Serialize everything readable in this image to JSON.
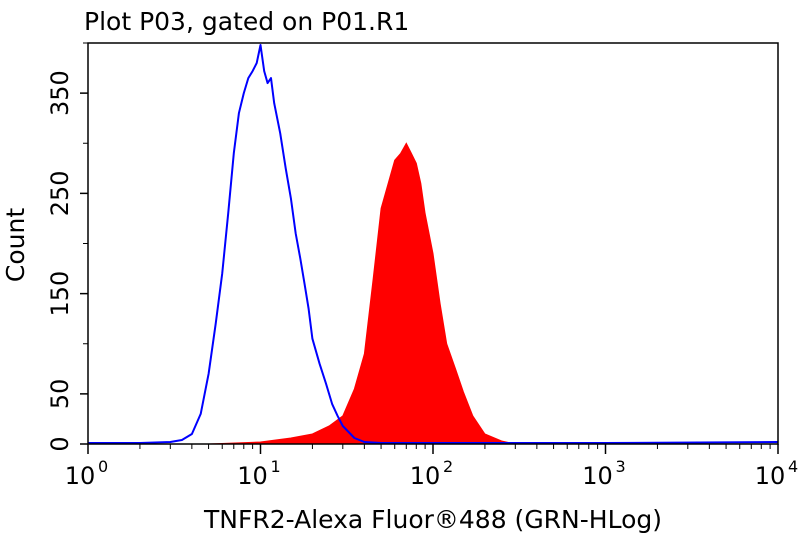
{
  "chart_data": {
    "type": "area",
    "title": "Plot P03, gated on P01.R1",
    "xlabel": "TNFR2-Alexa Fluor®488 (GRN-HLog)",
    "ylabel": "Count",
    "x_scale": "log",
    "xlim": [
      1,
      10000
    ],
    "ylim": [
      0,
      400
    ],
    "x_ticks": [
      {
        "base": "10",
        "exp": "0"
      },
      {
        "base": "10",
        "exp": "1"
      },
      {
        "base": "10",
        "exp": "2"
      },
      {
        "base": "10",
        "exp": "3"
      },
      {
        "base": "10",
        "exp": "4"
      }
    ],
    "y_ticks": [
      "0",
      "50",
      "150",
      "250",
      "350"
    ],
    "y_tick_values": [
      0,
      50,
      150,
      250,
      350
    ],
    "grid": false,
    "series": [
      {
        "style": "filled",
        "color": "#ff0000",
        "x": [
          1,
          5,
          10,
          15,
          20,
          25,
          30,
          35,
          40,
          45,
          50,
          55,
          60,
          65,
          70,
          75,
          80,
          85,
          90,
          100,
          110,
          120,
          135,
          150,
          170,
          200,
          250,
          300,
          400,
          1000,
          10000
        ],
        "y": [
          0,
          0,
          2,
          6,
          10,
          18,
          28,
          55,
          90,
          165,
          235,
          260,
          283,
          290,
          300,
          290,
          280,
          260,
          230,
          190,
          140,
          100,
          75,
          52,
          28,
          10,
          3,
          0,
          0,
          0,
          0
        ]
      },
      {
        "style": "line",
        "color": "#0000ff",
        "x": [
          1,
          2,
          3,
          3.5,
          4,
          4.5,
          5,
          5.5,
          6,
          6.5,
          7,
          7.5,
          8,
          8.5,
          9,
          9.5,
          10,
          10.5,
          11,
          11.5,
          12,
          13,
          14,
          15,
          16,
          17,
          18,
          19,
          20,
          22,
          24,
          26,
          28,
          30,
          35,
          40,
          50,
          100,
          1000,
          10000
        ],
        "y": [
          1,
          1,
          2,
          4,
          10,
          30,
          70,
          120,
          170,
          230,
          290,
          330,
          350,
          365,
          372,
          380,
          398,
          372,
          360,
          365,
          340,
          310,
          275,
          245,
          210,
          185,
          160,
          135,
          105,
          80,
          60,
          40,
          28,
          18,
          6,
          2,
          1,
          1,
          1,
          2
        ]
      }
    ]
  }
}
